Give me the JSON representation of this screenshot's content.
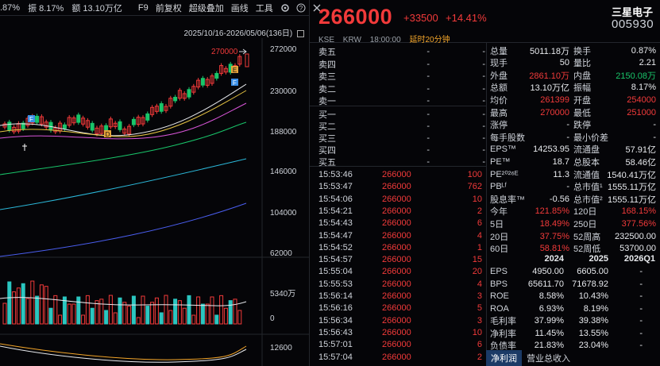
{
  "topbar": {
    "items": [
      ".87%",
      "振 8.17%",
      "额 13.10万亿"
    ],
    "menus": [
      "F9",
      "前复权",
      "超级叠加",
      "画线",
      "工具"
    ]
  },
  "daterange": "2025/10/16-2026/05/06(136日)",
  "chart": {
    "price_labels": [
      "272000",
      "230000",
      "188000",
      "146000",
      "104000",
      "62000"
    ],
    "vol_labels": [
      "5340万",
      "0"
    ],
    "osc_label": "12600",
    "high_marker": "270000",
    "markers": [
      "E",
      "F",
      "F",
      "D"
    ]
  },
  "header": {
    "price": "266000",
    "change": "+33500",
    "pct": "+14.41%",
    "name": "三星电子",
    "code": "005930",
    "exchange": "KSE",
    "currency": "KRW",
    "time": "18:00:00",
    "delay": "延时20分钟"
  },
  "orderbook": [
    {
      "label": "卖五",
      "price": "-",
      "vol": "-"
    },
    {
      "label": "卖四",
      "price": "-",
      "vol": "-"
    },
    {
      "label": "卖三",
      "price": "-",
      "vol": "-"
    },
    {
      "label": "卖二",
      "price": "-",
      "vol": "-"
    },
    {
      "label": "卖一",
      "price": "-",
      "vol": "-"
    },
    {
      "label": "买一",
      "price": "-",
      "vol": "-"
    },
    {
      "label": "买二",
      "price": "-",
      "vol": "-"
    },
    {
      "label": "买三",
      "price": "-",
      "vol": "-"
    },
    {
      "label": "买四",
      "price": "-",
      "vol": "-"
    },
    {
      "label": "买五",
      "price": "-",
      "vol": "-"
    }
  ],
  "ticks": [
    {
      "time": "15:53:46",
      "price": "266000",
      "vol": "100"
    },
    {
      "time": "15:53:47",
      "price": "266000",
      "vol": "762"
    },
    {
      "time": "15:54:06",
      "price": "266000",
      "vol": "10"
    },
    {
      "time": "15:54:21",
      "price": "266000",
      "vol": "2"
    },
    {
      "time": "15:54:43",
      "price": "266000",
      "vol": "6"
    },
    {
      "time": "15:54:47",
      "price": "266000",
      "vol": "4"
    },
    {
      "time": "15:54:52",
      "price": "266000",
      "vol": "1"
    },
    {
      "time": "15:54:57",
      "price": "266000",
      "vol": "15"
    },
    {
      "time": "15:55:04",
      "price": "266000",
      "vol": "20"
    },
    {
      "time": "15:55:53",
      "price": "266000",
      "vol": "4"
    },
    {
      "time": "15:56:14",
      "price": "266000",
      "vol": "3"
    },
    {
      "time": "15:56:16",
      "price": "266000",
      "vol": "5"
    },
    {
      "time": "15:56:34",
      "price": "266000",
      "vol": "3"
    },
    {
      "time": "15:56:43",
      "price": "266000",
      "vol": "10"
    },
    {
      "time": "15:57:01",
      "price": "266000",
      "vol": "6"
    },
    {
      "time": "15:57:04",
      "price": "266000",
      "vol": "2"
    }
  ],
  "stats": [
    {
      "k1": "总量",
      "v1": "5011.18万",
      "c1": "white",
      "k2": "换手",
      "v2": "0.87%",
      "c2": "white"
    },
    {
      "k1": "现手",
      "v1": "50",
      "c1": "white",
      "k2": "量比",
      "v2": "2.21",
      "c2": "white"
    },
    {
      "k1": "外盘",
      "v1": "2861.10万",
      "c1": "red",
      "k2": "内盘",
      "v2": "2150.08万",
      "c2": "green"
    },
    {
      "k1": "总额",
      "v1": "13.10万亿",
      "c1": "white",
      "k2": "振幅",
      "v2": "8.17%",
      "c2": "white"
    },
    {
      "k1": "均价",
      "v1": "261399",
      "c1": "red",
      "k2": "开盘",
      "v2": "254000",
      "c2": "red"
    },
    {
      "k1": "最高",
      "v1": "270000",
      "c1": "red",
      "k2": "最低",
      "v2": "251000",
      "c2": "red"
    },
    {
      "k1": "涨停",
      "v1": "-",
      "c1": "white",
      "k2": "跌停",
      "v2": "-",
      "c2": "white"
    },
    {
      "k1": "每手股数",
      "v1": "-",
      "c1": "white",
      "k2": "最小价差",
      "v2": "-",
      "c2": "white"
    },
    {
      "k1": "EPS™",
      "v1": "14253.95",
      "c1": "white",
      "k2": "流通盘",
      "v2": "57.91亿",
      "c2": "white"
    },
    {
      "k1": "PE™",
      "v1": "18.7",
      "c1": "white",
      "k2": "总股本",
      "v2": "58.46亿",
      "c2": "white"
    },
    {
      "k1": "PE²⁰²⁶ᴱ",
      "v1": "11.3",
      "c1": "white",
      "k2": "流通值",
      "v2": "1540.41万亿",
      "c2": "white"
    },
    {
      "k1": "PBᴸᶠ",
      "v1": "-",
      "c1": "white",
      "k2": "总市值¹",
      "v2": "1555.11万亿",
      "c2": "white"
    },
    {
      "k1": "股息率™",
      "v1": "-0.56",
      "c1": "white",
      "k2": "总市值²",
      "v2": "1555.11万亿",
      "c2": "white"
    },
    {
      "k1": "今年",
      "v1": "121.85%",
      "c1": "red",
      "k2": "120日",
      "v2": "168.15%",
      "c2": "red"
    },
    {
      "k1": "5日",
      "v1": "18.49%",
      "c1": "red",
      "k2": "250日",
      "v2": "377.56%",
      "c2": "red"
    },
    {
      "k1": "20日",
      "v1": "37.75%",
      "c1": "red",
      "k2": "52周高",
      "v2": "232500.00",
      "c2": "white"
    },
    {
      "k1": "60日",
      "v1": "58.81%",
      "c1": "red",
      "k2": "52周低",
      "v2": "53700.00",
      "c2": "white"
    }
  ],
  "fin_header": [
    "2024",
    "2025",
    "2026Q1"
  ],
  "fin": [
    {
      "k": "EPS",
      "a": "4950.00",
      "b": "6605.00",
      "c": "-"
    },
    {
      "k": "BPS",
      "a": "65611.70",
      "b": "71678.92",
      "c": "-"
    },
    {
      "k": "ROE",
      "a": "8.58%",
      "b": "10.43%",
      "c": "-"
    },
    {
      "k": "ROA",
      "a": "6.93%",
      "b": "8.19%",
      "c": "-"
    },
    {
      "k": "毛利率",
      "a": "37.99%",
      "b": "39.38%",
      "c": "-"
    },
    {
      "k": "净利率",
      "a": "11.45%",
      "b": "13.55%",
      "c": "-"
    },
    {
      "k": "负债率",
      "a": "21.83%",
      "b": "23.04%",
      "c": "-"
    }
  ],
  "tabs": [
    "净利润",
    "营业总收入"
  ],
  "colors": {
    "up": "#f23a3a",
    "down": "#19c56a",
    "bg": "#050508",
    "accent": "#1b3a66"
  }
}
